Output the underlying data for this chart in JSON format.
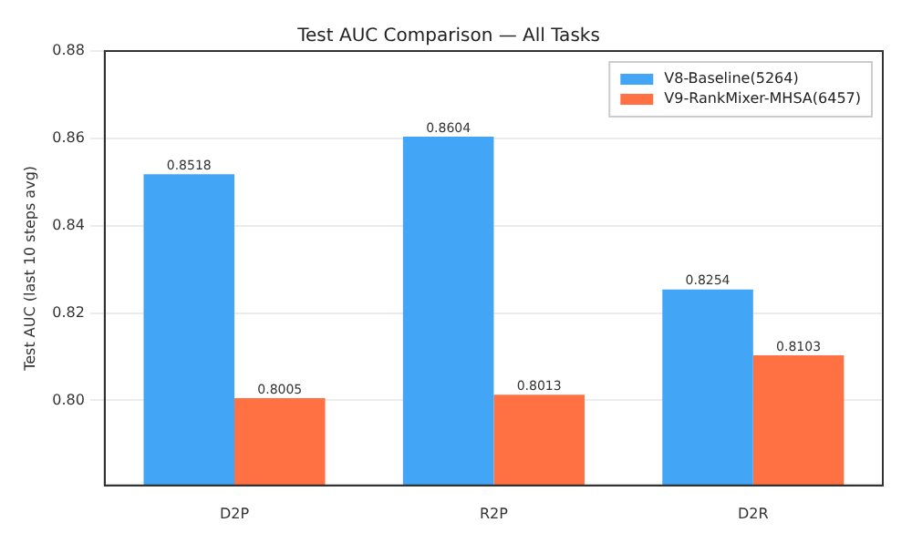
{
  "chart_data": {
    "type": "bar",
    "title": "Test AUC Comparison — All Tasks",
    "ylabel": "Test AUC (last 10 steps avg)",
    "categories": [
      "D2P",
      "R2P",
      "D2R"
    ],
    "series": [
      {
        "name": "V8-Baseline(5264)",
        "color": "#42a5f5",
        "values": [
          0.8518,
          0.8604,
          0.8254
        ]
      },
      {
        "name": "V9-RankMixer-MHSA(6457)",
        "color": "#ff7043",
        "values": [
          0.8005,
          0.8013,
          0.8103
        ]
      }
    ],
    "ylim": [
      0.7805,
      0.88
    ],
    "yticks": [
      {
        "value": 0.8,
        "label": "0.80"
      },
      {
        "value": 0.82,
        "label": "0.82"
      },
      {
        "value": 0.84,
        "label": "0.84"
      },
      {
        "value": 0.86,
        "label": "0.86"
      },
      {
        "value": 0.88,
        "label": "0.88"
      }
    ],
    "grid": "y",
    "legend": "top right",
    "data_labels": true
  }
}
